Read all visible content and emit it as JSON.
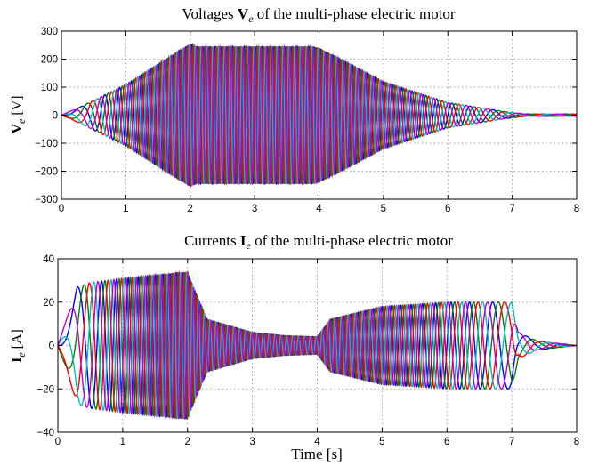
{
  "chart_data": [
    {
      "type": "line",
      "title_parts": [
        "Voltages ",
        "V",
        "e",
        " of the multi-phase electric motor"
      ],
      "ylabel_parts": [
        "V",
        "e",
        " [V]"
      ],
      "xlabel": "",
      "xlim": [
        0,
        8
      ],
      "ylim": [
        -300,
        300
      ],
      "x_ticks": [
        0,
        1,
        2,
        3,
        4,
        5,
        6,
        7,
        8
      ],
      "y_ticks": [
        -300,
        -200,
        -100,
        0,
        100,
        200,
        300
      ],
      "grid": true,
      "series_colors": [
        "#0000ff",
        "#008000",
        "#ff0000",
        "#00bfbf",
        "#bf00bf"
      ],
      "phase_count": 5,
      "frequency_profile": {
        "t": [
          0,
          2,
          4,
          6,
          7,
          8
        ],
        "hz": [
          0.0,
          11.0,
          11.0,
          4.0,
          1.7,
          1.7
        ]
      },
      "amplitude_envelope": {
        "t": [
          0,
          0.3,
          1.0,
          2.0,
          2.1,
          3.9,
          4.0,
          5.0,
          6.0,
          6.9,
          7.2,
          8.0
        ],
        "value": [
          0,
          30,
          110,
          255,
          245,
          245,
          240,
          120,
          45,
          12,
          4,
          4
        ]
      }
    },
    {
      "type": "line",
      "title_parts": [
        "Currents ",
        "I",
        "e",
        " of the multi-phase electric motor"
      ],
      "ylabel_parts": [
        "I",
        "e",
        " [A]"
      ],
      "xlabel": "Time [s]",
      "xlim": [
        0,
        8
      ],
      "ylim": [
        -40,
        40
      ],
      "x_ticks": [
        0,
        1,
        2,
        3,
        4,
        5,
        6,
        7,
        8
      ],
      "y_ticks": [
        -40,
        -20,
        0,
        20,
        40
      ],
      "grid": true,
      "series_colors": [
        "#0000ff",
        "#008000",
        "#ff0000",
        "#00bfbf",
        "#bf00bf"
      ],
      "phase_count": 5,
      "frequency_profile": {
        "t": [
          0,
          2,
          4,
          6,
          7,
          8
        ],
        "hz": [
          0.0,
          11.0,
          11.0,
          4.0,
          1.7,
          1.7
        ]
      },
      "amplitude_envelope": {
        "t": [
          0,
          0.3,
          0.5,
          1.0,
          2.0,
          2.05,
          2.3,
          3.0,
          3.5,
          4.0,
          4.2,
          5.0,
          6.0,
          7.0,
          7.1,
          7.4,
          8.0
        ],
        "value": [
          0,
          27,
          29,
          31,
          34,
          30,
          12,
          6,
          4.5,
          4,
          12,
          18,
          20,
          20,
          6,
          2,
          0
        ]
      }
    }
  ]
}
